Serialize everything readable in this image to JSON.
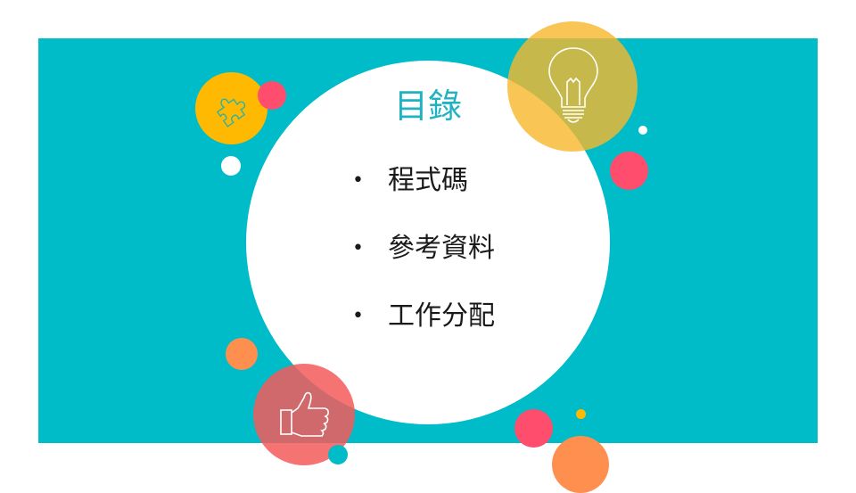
{
  "slide": {
    "title": "目錄",
    "items": [
      {
        "label": "程式碼"
      },
      {
        "label": "參考資料"
      },
      {
        "label": "工作分配"
      }
    ],
    "bullet": "•"
  },
  "colors": {
    "band": "#00bcc9",
    "title": "#1fb3c2",
    "yellow": "#ffb900",
    "coral": "#ff4d6d",
    "orange": "#ff8f4f",
    "lightbulb_circle": "#f7b72b",
    "thumb_circle": "#f45b5b"
  },
  "icons": {
    "puzzle": "puzzle-icon",
    "lightbulb": "lightbulb-icon",
    "thumbs_up": "thumbs-up-icon"
  }
}
